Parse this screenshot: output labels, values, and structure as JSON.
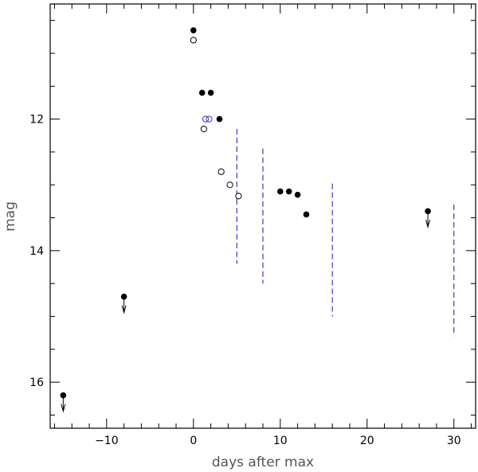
{
  "chart_data": {
    "type": "scatter",
    "title": "",
    "xlabel": "days after max",
    "ylabel": "mag",
    "xlim": [
      -16.5,
      32.5
    ],
    "ylim": [
      16.7,
      10.25
    ],
    "y_inverted": true,
    "x_ticks": [
      -10,
      0,
      10,
      20,
      30
    ],
    "y_ticks": [
      12,
      14,
      16
    ],
    "x_minor_step": 2,
    "y_minor_step": 0.5,
    "grid": false,
    "colors": {
      "axes": "#000000",
      "filled": "#000000",
      "open_black": "#000000",
      "open_blue": "#3333aa",
      "dashed": "#3b3bc8"
    },
    "series": [
      {
        "marker": "filled-circle",
        "points": [
          {
            "x": 0,
            "y": 10.65
          },
          {
            "x": 1,
            "y": 11.6
          },
          {
            "x": 2,
            "y": 11.6
          },
          {
            "x": 3,
            "y": 12.0
          },
          {
            "x": 10,
            "y": 13.1
          },
          {
            "x": 11,
            "y": 13.1
          },
          {
            "x": 12,
            "y": 13.15
          },
          {
            "x": 13,
            "y": 13.45
          }
        ]
      },
      {
        "marker": "filled-circle-upper-limit",
        "points": [
          {
            "x": -15,
            "y": 16.2
          },
          {
            "x": -8,
            "y": 14.7
          },
          {
            "x": 27,
            "y": 13.4
          }
        ]
      },
      {
        "marker": "open-circle",
        "points": [
          {
            "x": 0,
            "y": 10.8
          },
          {
            "x": 1.2,
            "y": 12.15
          },
          {
            "x": 3.2,
            "y": 12.8
          },
          {
            "x": 4.2,
            "y": 13.0
          },
          {
            "x": 5.2,
            "y": 13.17
          }
        ]
      },
      {
        "marker": "open-circle-blue",
        "points": [
          {
            "x": 1.4,
            "y": 12.0
          },
          {
            "x": 1.8,
            "y": 12.0
          }
        ]
      }
    ],
    "dashed_lines": [
      {
        "x": 5,
        "y1": 12.15,
        "y2": 14.2
      },
      {
        "x": 8,
        "y1": 12.45,
        "y2": 14.5
      },
      {
        "x": 16,
        "y1": 12.98,
        "y2": 15.0
      },
      {
        "x": 30,
        "y1": 13.3,
        "y2": 15.3
      }
    ]
  }
}
